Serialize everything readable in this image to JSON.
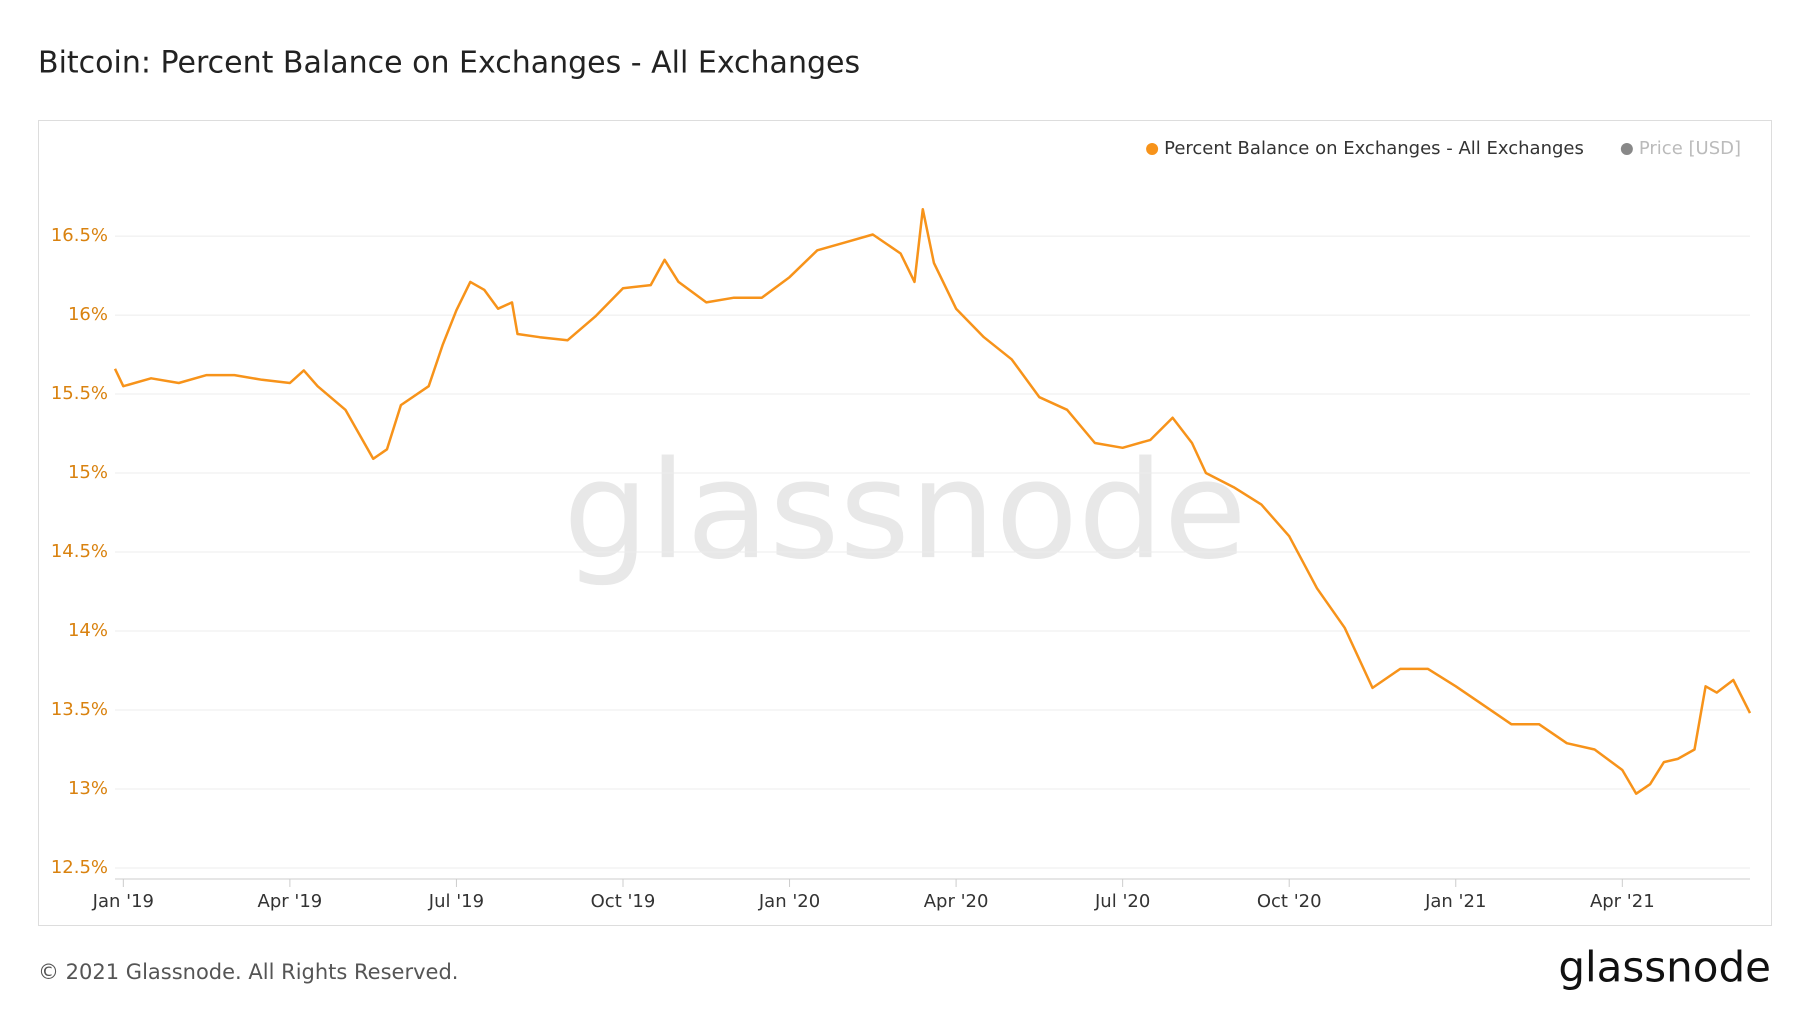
{
  "chart_data": {
    "type": "line",
    "title": "Bitcoin: Percent Balance on Exchanges - All Exchanges",
    "x": [
      -0.15,
      0,
      0.5,
      1,
      1.5,
      2,
      2.5,
      3,
      3.25,
      3.5,
      4,
      4.5,
      4.75,
      5,
      5.5,
      5.75,
      6,
      6.25,
      6.5,
      6.75,
      7,
      7.1,
      7.5,
      8,
      8.5,
      9,
      9.5,
      9.75,
      10,
      10.5,
      11,
      11.5,
      12,
      12.5,
      13,
      13.5,
      13.75,
      14,
      14.25,
      14.4,
      14.6,
      15,
      15.5,
      16,
      16.5,
      17,
      17.5,
      18,
      18.5,
      18.9,
      19.25,
      19.5,
      20,
      20.5,
      21,
      21.5,
      22,
      22.5,
      23,
      23.5,
      24,
      24.5,
      25,
      25.5,
      26,
      26.5,
      27,
      27.25,
      27.5,
      27.75,
      28,
      28.3,
      28.5,
      28.7,
      29,
      29.3
    ],
    "series": [
      {
        "name": "Percent Balance on Exchanges - All Exchanges",
        "color": "#f7931a",
        "values": [
          15.66,
          15.55,
          15.6,
          15.57,
          15.62,
          15.62,
          15.59,
          15.57,
          15.65,
          15.55,
          15.4,
          15.09,
          15.15,
          15.43,
          15.55,
          15.81,
          16.03,
          16.21,
          16.16,
          16.04,
          16.08,
          15.88,
          15.86,
          15.84,
          15.99,
          16.17,
          16.19,
          16.35,
          16.21,
          16.08,
          16.11,
          16.11,
          16.24,
          16.41,
          16.46,
          16.51,
          16.45,
          16.39,
          16.21,
          16.67,
          16.33,
          16.04,
          15.86,
          15.72,
          15.48,
          15.4,
          15.19,
          15.16,
          15.21,
          15.35,
          15.19,
          15.0,
          14.91,
          14.8,
          14.6,
          14.27,
          14.02,
          13.64,
          13.76,
          13.76,
          13.65,
          13.53,
          13.41,
          13.41,
          13.29,
          13.25,
          13.12,
          12.97,
          13.03,
          13.17,
          13.19,
          13.25,
          13.65,
          13.61,
          13.69,
          13.48
        ]
      }
    ],
    "inactive_legend": [
      {
        "name": "Price [USD]",
        "color": "#888888"
      }
    ],
    "xlim": [
      -0.15,
      29.3
    ],
    "xticks": [
      {
        "value": 0,
        "label": "Jan '19"
      },
      {
        "value": 3,
        "label": "Apr '19"
      },
      {
        "value": 6,
        "label": "Jul '19"
      },
      {
        "value": 9,
        "label": "Oct '19"
      },
      {
        "value": 12,
        "label": "Jan '20"
      },
      {
        "value": 15,
        "label": "Apr '20"
      },
      {
        "value": 18,
        "label": "Jul '20"
      },
      {
        "value": 21,
        "label": "Oct '20"
      },
      {
        "value": 24,
        "label": "Jan '21"
      },
      {
        "value": 27,
        "label": "Apr '21"
      }
    ],
    "ylim": [
      12.43,
      16.95
    ],
    "yticks": [
      {
        "value": 12.5,
        "label": "12.5%"
      },
      {
        "value": 13,
        "label": "13%"
      },
      {
        "value": 13.5,
        "label": "13.5%"
      },
      {
        "value": 14,
        "label": "14%"
      },
      {
        "value": 14.5,
        "label": "14.5%"
      },
      {
        "value": 15,
        "label": "15%"
      },
      {
        "value": 15.5,
        "label": "15.5%"
      },
      {
        "value": 16,
        "label": "16%"
      },
      {
        "value": 16.5,
        "label": "16.5%"
      }
    ],
    "grid": true
  },
  "watermark": "glassnode",
  "footer": "© 2021 Glassnode. All Rights Reserved.",
  "logo": "glassnode"
}
